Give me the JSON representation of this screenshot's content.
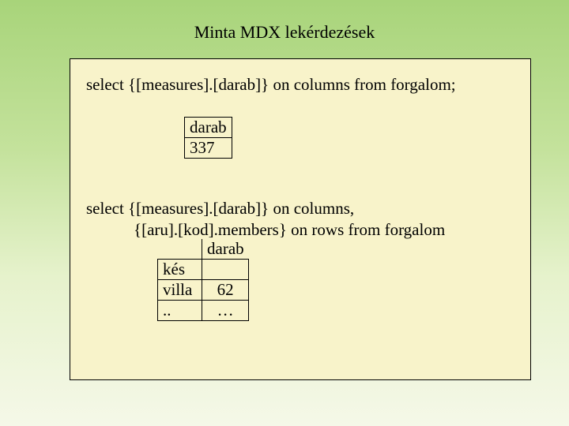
{
  "title": "Minta MDX lekérdezések",
  "query1": "select {[measures].[darab]} on columns  from  forgalom;",
  "table1": {
    "header": "darab",
    "value": "337"
  },
  "query2": {
    "line1": "select {[measures].[darab]} on columns,",
    "line2": "{[aru].[kod].members} on rows  from  forgalom"
  },
  "table2": {
    "header": "darab",
    "rows": [
      {
        "label": "kés",
        "value": ""
      },
      {
        "label": "villa",
        "value": "62"
      },
      {
        "label": "..",
        "value": "…"
      }
    ]
  },
  "colors": {
    "panel_bg": "#f8f3ca",
    "border": "#000000",
    "text": "#000000",
    "bg_gradient_top": "#a8d47a",
    "bg_gradient_bottom": "#f5f8e8"
  },
  "typography": {
    "font_family": "Times New Roman",
    "title_fontsize": 22,
    "body_fontsize": 21
  }
}
